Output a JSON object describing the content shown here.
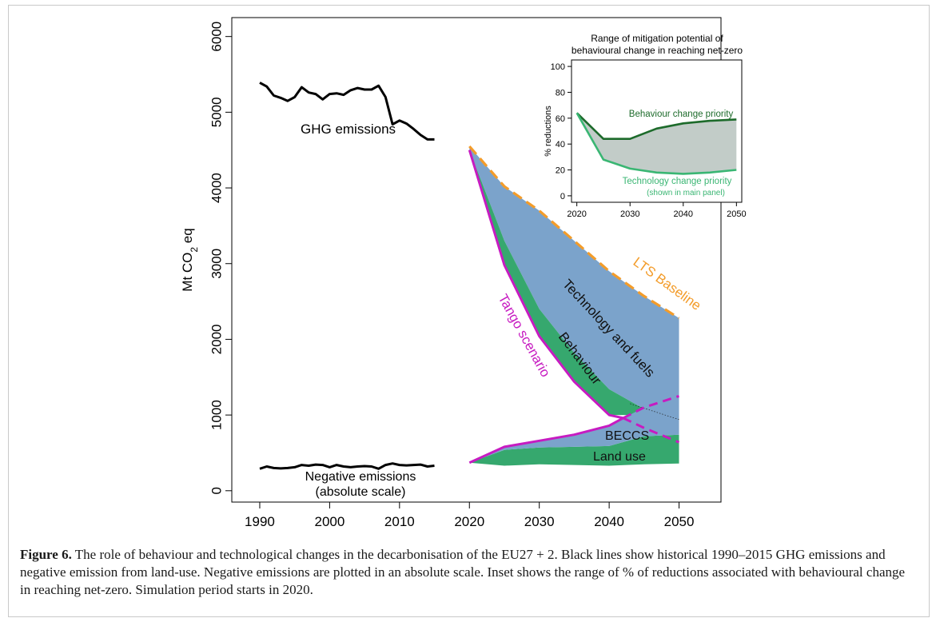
{
  "caption": {
    "label": "Figure 6.",
    "text": " The role of behaviour and technological changes in the decarbonisation of the EU27 + 2. Black lines show historical 1990–2015 GHG emissions and negative emission from land-use. Negative emissions are plotted in an absolute scale. Inset shows the range of % of reductions associated with behavioural change in reaching net-zero. Simulation period starts in 2020."
  },
  "colors": {
    "technology": "#7ba3cb",
    "behaviour": "#36a86e",
    "land_use": "#36a86e",
    "beccs": "#7ba3cb",
    "tango": "#c71bc1",
    "baseline": "#f39c2a",
    "historical": "#000000",
    "inset_fill": "#c2ccc8",
    "inset_behaviour": "#1d6b2b",
    "inset_technology": "#3ab673"
  },
  "chart_data": [
    {
      "type": "area",
      "title": "",
      "xlabel": "",
      "ylabel": "Mt CO2 eq",
      "xlim": [
        1986,
        2056
      ],
      "ylim": [
        -150,
        6250
      ],
      "xticks": [
        1990,
        2000,
        2010,
        2020,
        2030,
        2040,
        2050
      ],
      "yticks": [
        0,
        1000,
        2000,
        3000,
        4000,
        5000,
        6000
      ],
      "grid": false,
      "series": [
        {
          "name": "GHG emissions",
          "x": [
            1990,
            1991,
            1992,
            1993,
            1994,
            1995,
            1996,
            1997,
            1998,
            1999,
            2000,
            2001,
            2002,
            2003,
            2004,
            2005,
            2006,
            2007,
            2008,
            2009,
            2010,
            2011,
            2012,
            2013,
            2014,
            2015
          ],
          "y": [
            5390,
            5340,
            5220,
            5190,
            5150,
            5200,
            5330,
            5260,
            5240,
            5170,
            5240,
            5250,
            5230,
            5290,
            5320,
            5300,
            5300,
            5350,
            5200,
            4840,
            4890,
            4850,
            4780,
            4700,
            4640,
            4640
          ]
        },
        {
          "name": "Negative emissions (absolute scale)",
          "x": [
            1990,
            1991,
            1992,
            1993,
            1994,
            1995,
            1996,
            1997,
            1998,
            1999,
            2000,
            2001,
            2002,
            2003,
            2004,
            2005,
            2006,
            2007,
            2008,
            2009,
            2010,
            2011,
            2012,
            2013,
            2014,
            2015
          ],
          "y": [
            290,
            320,
            300,
            295,
            300,
            310,
            340,
            330,
            345,
            340,
            310,
            340,
            320,
            310,
            320,
            325,
            320,
            290,
            340,
            360,
            340,
            335,
            340,
            345,
            320,
            330
          ]
        },
        {
          "name": "LTS Baseline",
          "x": [
            2020,
            2025,
            2030,
            2035,
            2040,
            2045,
            2050
          ],
          "y": [
            4550,
            4020,
            3700,
            3300,
            2900,
            2570,
            2280
          ]
        },
        {
          "name": "Technology and fuels",
          "x": [
            2020,
            2025,
            2030,
            2035,
            2040,
            2045,
            2050
          ],
          "lower": [
            4500,
            3300,
            2400,
            1820,
            1340,
            1080,
            1050
          ],
          "upper": [
            4550,
            4020,
            3700,
            3300,
            2900,
            2570,
            2280
          ]
        },
        {
          "name": "Behaviour",
          "x": [
            2020,
            2025,
            2030,
            2035,
            2040,
            2045,
            2050
          ],
          "lower": [
            4500,
            2980,
            2040,
            1440,
            1000,
            1000,
            1000
          ],
          "upper": [
            4500,
            3300,
            2400,
            1820,
            1340,
            1080,
            1050
          ]
        },
        {
          "name": "Tango scenario",
          "x": [
            2020,
            2025,
            2030,
            2035,
            2040,
            2042
          ],
          "y": [
            4500,
            2980,
            2040,
            1440,
            1000,
            960
          ]
        },
        {
          "name": "BECCS",
          "x": [
            2020,
            2025,
            2030,
            2035,
            2040,
            2045,
            2050
          ],
          "lower": [
            370,
            540,
            570,
            580,
            590,
            720,
            740
          ],
          "upper": [
            370,
            580,
            660,
            740,
            860,
            1100,
            1250
          ]
        },
        {
          "name": "Land use",
          "x": [
            2020,
            2025,
            2030,
            2035,
            2040,
            2045,
            2050
          ],
          "lower": [
            370,
            330,
            350,
            340,
            330,
            350,
            360
          ],
          "upper": [
            370,
            540,
            570,
            580,
            590,
            720,
            740
          ]
        }
      ],
      "annotations": [
        "GHG emissions",
        "Negative emissions",
        "(absolute scale)",
        "LTS Baseline",
        "Tango scenario",
        "Technology and fuels",
        "Behaviour",
        "BECCS",
        "Land use"
      ]
    },
    {
      "type": "area",
      "title": "Range of mitigation potential of behavioural change in reaching net-zero",
      "title_lines": [
        "Range of mitigation potential of",
        "behavioural change in reaching net-zero"
      ],
      "xlabel": "",
      "ylabel": "% reductions",
      "xlim": [
        2019,
        2051
      ],
      "ylim": [
        -5,
        105
      ],
      "xticks": [
        2020,
        2030,
        2040,
        2050
      ],
      "yticks": [
        0,
        20,
        40,
        60,
        80,
        100
      ],
      "grid": false,
      "series": [
        {
          "name": "Behaviour change priority",
          "x": [
            2020,
            2025,
            2030,
            2035,
            2040,
            2045,
            2050
          ],
          "y": [
            64,
            44,
            44,
            52,
            56,
            58,
            59
          ]
        },
        {
          "name": "Technology change priority",
          "x": [
            2020,
            2025,
            2030,
            2035,
            2040,
            2045,
            2050
          ],
          "y": [
            64,
            28,
            21,
            18,
            17,
            18,
            20
          ]
        }
      ],
      "annotations": [
        "Behaviour change priority",
        "Technology change priority",
        "(shown in main panel)"
      ]
    }
  ]
}
